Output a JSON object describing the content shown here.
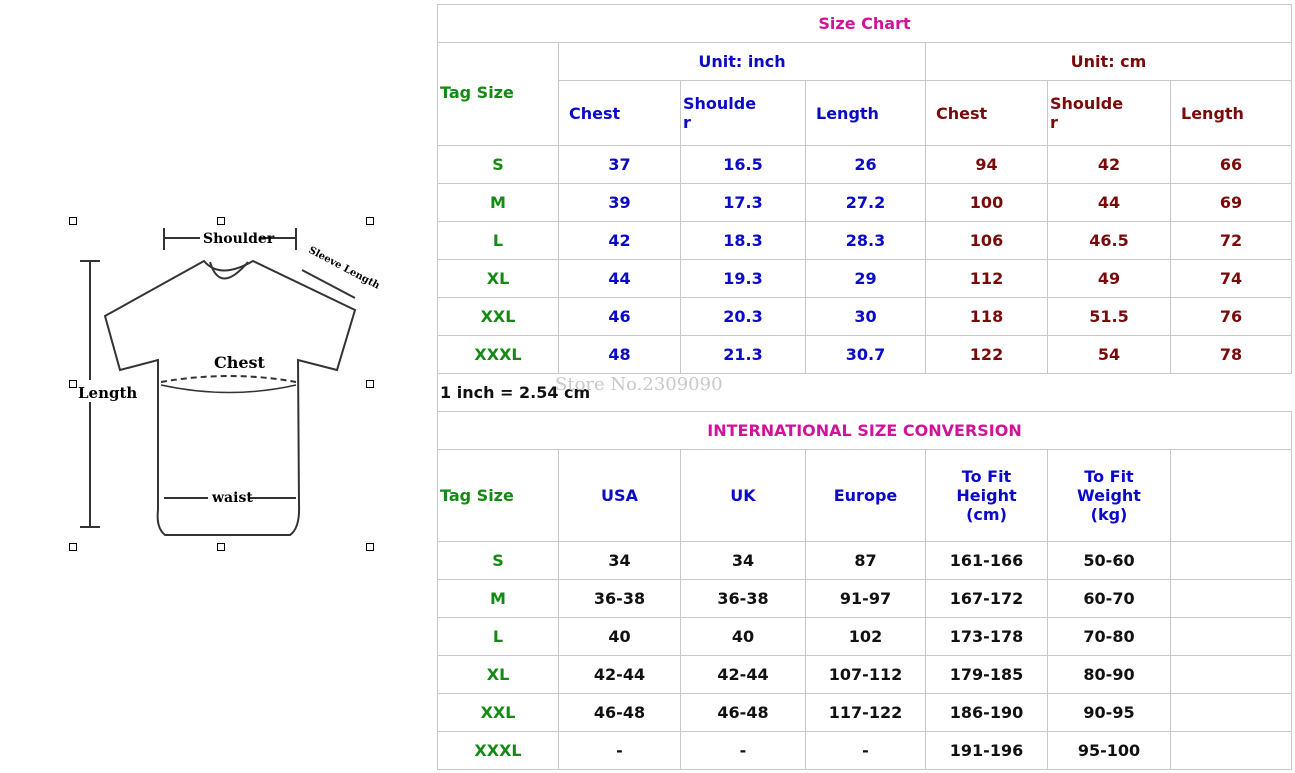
{
  "figure": {
    "labels": {
      "shoulder": "Shoulder",
      "sleeve": "Sleeve Length",
      "chest": "Chest",
      "length": "Length",
      "waist": "waist"
    }
  },
  "size_chart": {
    "title": "Size Chart",
    "tag_size_label": "Tag Size",
    "unit_inch": "Unit: inch",
    "unit_cm": "Unit: cm",
    "columns": [
      "Chest",
      "Shoulde\nr",
      "Length",
      "Chest",
      "Shoulde\nr",
      "Length"
    ],
    "rows": [
      [
        "S",
        "37",
        "16.5",
        "26",
        "94",
        "42",
        "66"
      ],
      [
        "M",
        "39",
        "17.3",
        "27.2",
        "100",
        "44",
        "69"
      ],
      [
        "L",
        "42",
        "18.3",
        "28.3",
        "106",
        "46.5",
        "72"
      ],
      [
        "XL",
        "44",
        "19.3",
        "29",
        "112",
        "49",
        "74"
      ],
      [
        "XXL",
        "46",
        "20.3",
        "30",
        "118",
        "51.5",
        "76"
      ],
      [
        "XXXL",
        "48",
        "21.3",
        "30.7",
        "122",
        "54",
        "78"
      ]
    ],
    "note": "1 inch = 2.54 cm"
  },
  "watermark": "Store No.2309090",
  "conversion": {
    "title": "INTERNATIONAL SIZE CONVERSION",
    "columns": [
      "Tag Size",
      "USA",
      "UK",
      "Europe",
      "To Fit\nHeight\n(cm)",
      "To Fit\nWeight\n(kg)",
      ""
    ],
    "rows": [
      [
        "S",
        "34",
        "34",
        "87",
        "161-166",
        "50-60"
      ],
      [
        "M",
        "36-38",
        "36-38",
        "91-97",
        "167-172",
        "60-70"
      ],
      [
        "L",
        "40",
        "40",
        "102",
        "173-178",
        "70-80"
      ],
      [
        "XL",
        "42-44",
        "42-44",
        "107-112",
        "179-185",
        "80-90"
      ],
      [
        "XXL",
        "46-48",
        "46-48",
        "117-122",
        "186-190",
        "90-95"
      ],
      [
        "XXXL",
        "-",
        "-",
        "-",
        "191-196",
        "95-100"
      ]
    ]
  },
  "colors": {
    "tag": "#138a13",
    "inch": "#0a0ac8",
    "cm": "#7a0a0a",
    "title": "#d0139a"
  }
}
